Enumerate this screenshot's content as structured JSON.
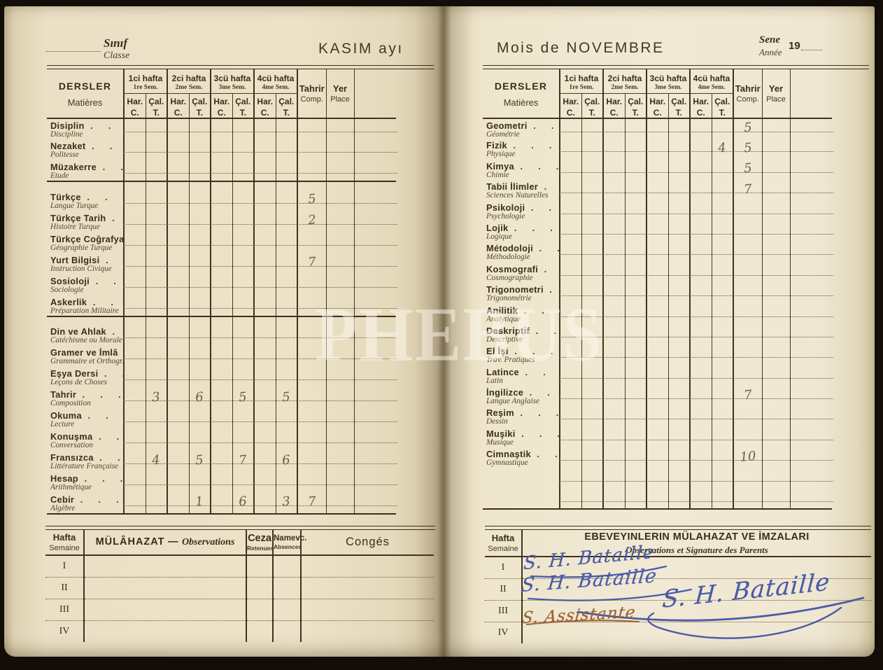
{
  "left_page": {
    "class_label": {
      "tr": "Sınıf",
      "fr": "Classe"
    },
    "month_title": "KASIM ayı",
    "rows": [
      {
        "tr": "Disiplin",
        "fr": "Discipline"
      },
      {
        "tr": "Nezaket",
        "fr": "Politesse"
      },
      {
        "tr": "Müzakerre",
        "fr": "Etude",
        "sep": true
      },
      {
        "tr": "Türkçe",
        "fr": "Langue Turque",
        "marks": {
          "comp": "5"
        }
      },
      {
        "tr": "Türkçe Tarih",
        "fr": "Histoire Turque",
        "marks": {
          "comp": "2"
        }
      },
      {
        "tr": "Türkçe Coğrafya",
        "fr": "Géographie Turque"
      },
      {
        "tr": "Yurt Bilgisi",
        "fr": "Instruction Civique",
        "marks": {
          "comp": "7"
        }
      },
      {
        "tr": "Sosioloji",
        "fr": "Sociologie"
      },
      {
        "tr": "Askerlik",
        "fr": "Préparation Militaire",
        "sep": true
      },
      {
        "tr": "Din ve Ahlak",
        "fr": "Catéchisme ou Morale"
      },
      {
        "tr": "Gramer ve İmlâ",
        "fr": "Grammaire et Orthogr."
      },
      {
        "tr": "Eşya Dersi",
        "fr": "Leçons de Choses"
      },
      {
        "tr": "Tahrir",
        "fr": "Composition",
        "marks": {
          "c1": "3",
          "c2": "6",
          "c3": "5",
          "c4": "5"
        }
      },
      {
        "tr": "Okuma",
        "fr": "Lecture"
      },
      {
        "tr": "Konuşma",
        "fr": "Conversation"
      },
      {
        "tr": "Fransızca",
        "fr": "Littérature Française",
        "marks": {
          "c1": "4",
          "c2": "5",
          "c3": "7",
          "c4": "6"
        }
      },
      {
        "tr": "Hesap",
        "fr": "Arithmétique"
      },
      {
        "tr": "Cebir",
        "fr": "Algèbre",
        "marks": {
          "c2": "1",
          "c3": "6",
          "c4": "3",
          "comp": "7"
        }
      }
    ],
    "bottom_table": {
      "mulahazat": "MÜLÂHAZAT",
      "dash": "—",
      "observations": "Observations",
      "ceza": "Ceza",
      "retenues": "Retenues",
      "namevc": "Namevc.",
      "absences": "Absences",
      "conges": "Congés"
    }
  },
  "right_page": {
    "month_title": "Mois de NOVEMBRE",
    "year_label": {
      "tr": "Sene",
      "fr": "Année",
      "value": "19"
    },
    "rows": [
      {
        "tr": "Geometri",
        "fr": "Géométrie",
        "marks": {
          "comp": "5"
        }
      },
      {
        "tr": "Fizik",
        "fr": "Physique",
        "marks": {
          "c4": "4",
          "comp": "5"
        }
      },
      {
        "tr": "Kimya",
        "fr": "Chimie",
        "marks": {
          "comp": "5"
        }
      },
      {
        "tr": "Tabii İlimler",
        "fr": "Sciences Naturelles",
        "marks": {
          "comp": "7"
        }
      },
      {
        "tr": "Psikoloji",
        "fr": "Psychologie"
      },
      {
        "tr": "Lojik",
        "fr": "Logique"
      },
      {
        "tr": "Métodoloji",
        "fr": "Méthodologie"
      },
      {
        "tr": "Kosmografi",
        "fr": "Cosmographie"
      },
      {
        "tr": "Trigonometri",
        "fr": "Trigonométrie"
      },
      {
        "tr": "Anilitik",
        "fr": "Analytique"
      },
      {
        "tr": "Deskriptif",
        "fr": "Descriptive"
      },
      {
        "tr": "El İşi",
        "fr": "Trav. Pratiques"
      },
      {
        "tr": "Latince",
        "fr": "Latin"
      },
      {
        "tr": "İngilizce",
        "fr": "Langue Anglaise",
        "marks": {
          "comp": "7"
        }
      },
      {
        "tr": "Reşim",
        "fr": "Dessin"
      },
      {
        "tr": "Muşiki",
        "fr": "Musique"
      },
      {
        "tr": "Cimnaştik",
        "fr": "Gymnastique",
        "marks": {
          "comp": "10"
        }
      },
      {
        "tr": "",
        "fr": ""
      },
      {
        "tr": "",
        "fr": ""
      }
    ],
    "bottom_table": {
      "title_tr": "EBEVEYINLERIN MÜLAHAZAT VE İMZALARI",
      "title_fr": "Observations et Signature des Parents",
      "signatures": [
        {
          "week": "I",
          "text": "S. H. Bataille"
        },
        {
          "week": "II",
          "text": "S. H. Bataille"
        },
        {
          "week": "III",
          "text": "S. H. Bataille"
        },
        {
          "week": "IV",
          "text": "S. Assistante"
        }
      ]
    }
  },
  "table_header": {
    "dersler": "DERSLER",
    "matieres": "Matières",
    "weeks": [
      {
        "tr": "1ci hafta",
        "fr": "1re Sem."
      },
      {
        "tr": "2ci hafta",
        "fr": "2me Sem."
      },
      {
        "tr": "3cü hafta",
        "fr": "3me Sem."
      },
      {
        "tr": "4cü hafta",
        "fr": "4me Sem."
      }
    ],
    "har": "Har.",
    "har_sub": "C.",
    "cal": "Çal.",
    "cal_sub": "T.",
    "tahrir": "Tahrir",
    "tahrir_sub": "Comp.",
    "yer": "Yer",
    "yer_sub": "Place"
  },
  "bottom_labels": {
    "hafta": "Hafta",
    "semaine": "Semaine",
    "weeks": [
      "I",
      "II",
      "III",
      "IV"
    ]
  },
  "watermark": "PHEBUS",
  "colors": {
    "paper_left": "#eae0c5",
    "paper_right": "#f1e9d4",
    "print_ink": "#392d1c",
    "pencil_grade": "#6e5c44",
    "blue_ink": "#4a5ba8",
    "brown_ink": "#9a6233"
  }
}
